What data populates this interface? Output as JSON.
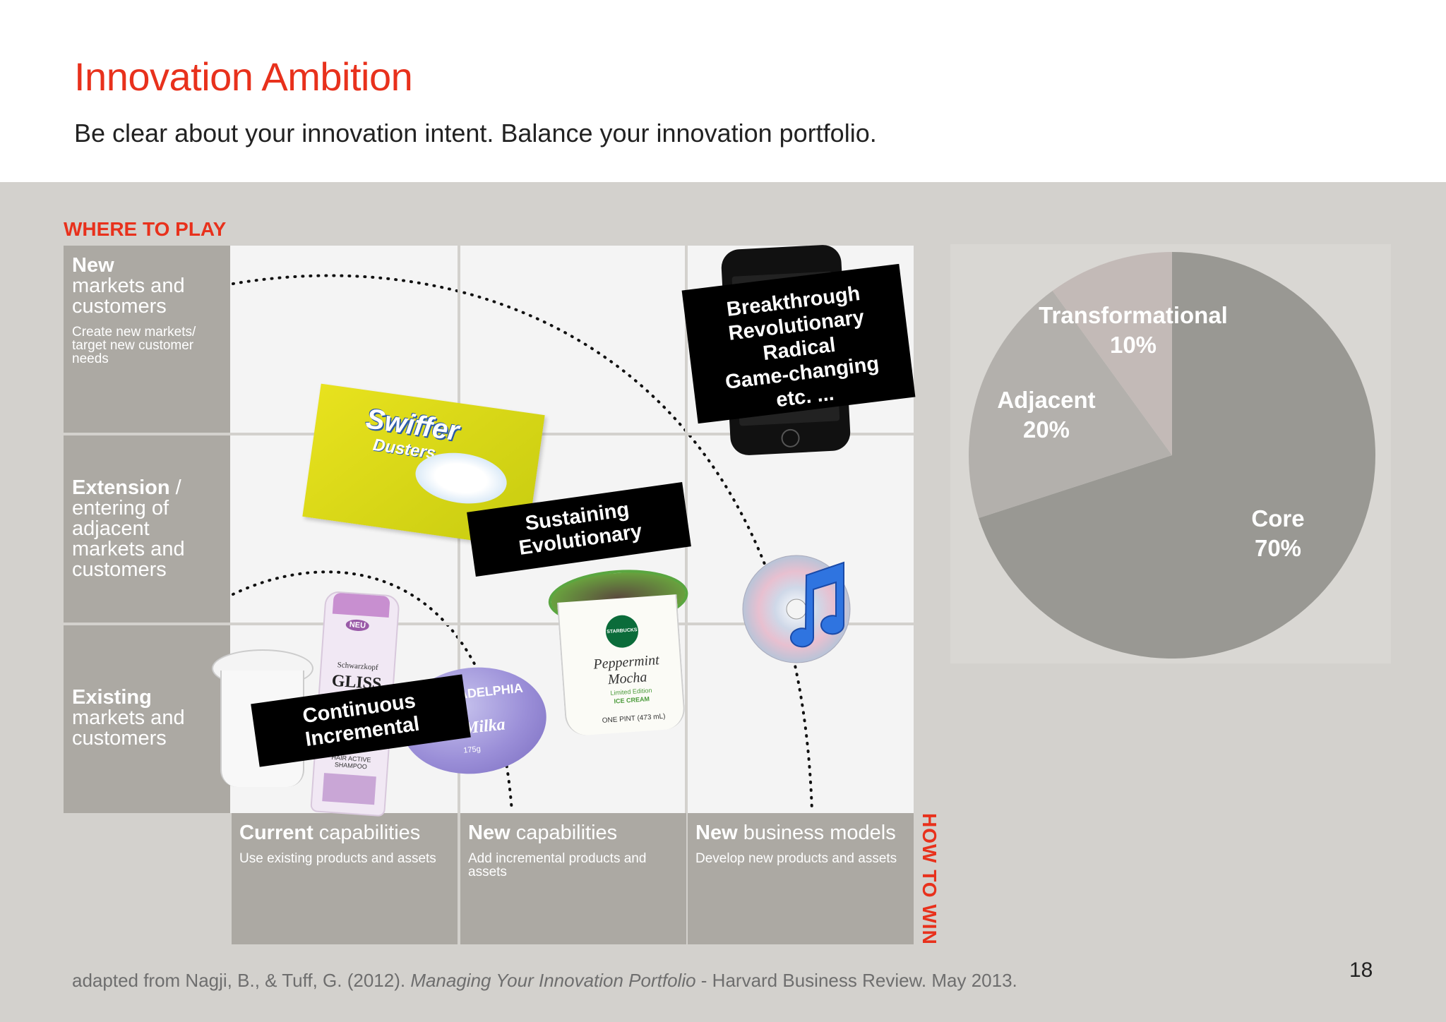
{
  "header": {
    "title": "Innovation Ambition",
    "subtitle": "Be clear about your innovation intent. Balance your innovation portfolio."
  },
  "axes": {
    "where_to_play": "WHERE TO PLAY",
    "how_to_win": "HOW TO WIN"
  },
  "rows": [
    {
      "bold": "New",
      "rest": "markets and customers",
      "sub": "Create new markets/ target new customer needs"
    },
    {
      "bold": "Extension",
      "rest": " / entering of adjacent markets and customers",
      "sub": ""
    },
    {
      "bold": "Existing",
      "rest": "markets and customers",
      "sub": ""
    }
  ],
  "columns": [
    {
      "bold": "Current",
      "rest": " capabilities",
      "sub": "Use existing products and assets"
    },
    {
      "bold": "New",
      "rest": " capabilities",
      "sub": "Add incremental products and assets"
    },
    {
      "bold": "New",
      "rest": " business models",
      "sub": "Develop new products and assets"
    }
  ],
  "tags": {
    "breakthrough": [
      "Breakthrough",
      "Revolutionary",
      "Radical",
      "Game-changing",
      "etc. ..."
    ],
    "sustaining": [
      "Sustaining",
      "Evolutionary"
    ],
    "continuous": [
      "Continuous",
      "Incremental"
    ]
  },
  "products": {
    "swiffer": {
      "brand": "Swiffer",
      "line": "Dusters"
    },
    "shampoo": {
      "brand": "GLISS",
      "maker": "Schwarzkopf",
      "badge": "NEU",
      "desc": "HAIR ACTIVE SHAMPOO"
    },
    "cheese": {
      "brand": "PHILADELPHIA",
      "flavor": "Milka",
      "weight": "175g"
    },
    "icecream": {
      "brand": "STARBUCKS COFFEE",
      "flavor": "Peppermint Mocha",
      "edition": "Limited Edition",
      "type": "ICE CREAM",
      "size": "ONE PINT (473 mL)"
    }
  },
  "chart_data": {
    "type": "pie",
    "slices": [
      {
        "label": "Core",
        "value": 70,
        "display": "70%",
        "color": "#999893"
      },
      {
        "label": "Adjacent",
        "value": 20,
        "display": "20%",
        "color": "#b3b0ac"
      },
      {
        "label": "Transformational",
        "value": 10,
        "display": "10%",
        "color": "#c3bab7"
      }
    ]
  },
  "footer": {
    "source_pre": "adapted from Nagji, B., & Tuff, G. (2012). ",
    "source_italic": "Managing Your Innovation Portfolio",
    "source_post": " - Harvard Business Review. May 2013.",
    "page": "18"
  }
}
